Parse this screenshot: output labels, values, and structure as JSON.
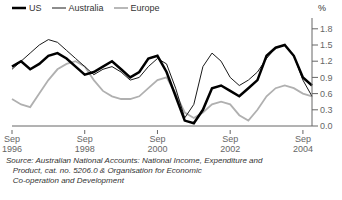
{
  "chart_data": {
    "type": "line",
    "y_label": "%",
    "categories": [
      "Sep\n1996",
      null,
      null,
      null,
      null,
      null,
      null,
      null,
      "Sep\n1998",
      null,
      null,
      null,
      null,
      null,
      null,
      null,
      "Sep\n2000",
      null,
      null,
      null,
      null,
      null,
      null,
      null,
      "Sep\n2002",
      null,
      null,
      null,
      null,
      null,
      null,
      null,
      "Sep\n2004",
      null
    ],
    "series": [
      {
        "name": "US",
        "color": "#000000",
        "values": [
          1.1,
          1.2,
          1.05,
          1.15,
          1.3,
          1.35,
          1.25,
          1.1,
          0.95,
          1.0,
          1.1,
          1.2,
          1.05,
          0.9,
          1.0,
          1.25,
          1.3,
          1.0,
          0.55,
          0.1,
          0.05,
          0.3,
          0.7,
          0.75,
          0.65,
          0.55,
          0.7,
          0.85,
          1.3,
          1.45,
          1.5,
          1.3,
          0.9,
          0.75
        ]
      },
      {
        "name": "Australia",
        "color": "#1a1a1a",
        "values": [
          1.05,
          1.2,
          1.35,
          1.5,
          1.6,
          1.55,
          1.4,
          1.25,
          1.1,
          0.95,
          1.05,
          1.1,
          1.0,
          0.85,
          0.9,
          1.1,
          1.25,
          1.15,
          0.7,
          0.15,
          0.4,
          1.1,
          1.35,
          1.2,
          0.9,
          0.75,
          0.85,
          1.0,
          1.25,
          1.45,
          1.5,
          1.3,
          0.85,
          0.55
        ]
      },
      {
        "name": "Europe",
        "color": "#b0b0b0",
        "values": [
          0.5,
          0.4,
          0.35,
          0.6,
          0.85,
          1.05,
          1.15,
          1.2,
          1.1,
          0.85,
          0.65,
          0.55,
          0.5,
          0.5,
          0.55,
          0.7,
          0.85,
          0.9,
          0.6,
          0.25,
          0.15,
          0.25,
          0.4,
          0.45,
          0.4,
          0.2,
          0.1,
          0.3,
          0.55,
          0.7,
          0.75,
          0.7,
          0.6,
          0.55
        ]
      }
    ],
    "ylim": [
      0,
      2
    ],
    "yticks": [
      {
        "value": 0,
        "label": "0.0"
      },
      0.3,
      0.6,
      0.9,
      1.2,
      1.5,
      1.8
    ],
    "grid": false,
    "legend": "upper left",
    "annotations": [
      "Source: Australian National Accounts: National Income, Expenditure and",
      "   Product, cat. no. 5206.0 & Organisation for Economic",
      "   Co-operation and Development"
    ]
  }
}
